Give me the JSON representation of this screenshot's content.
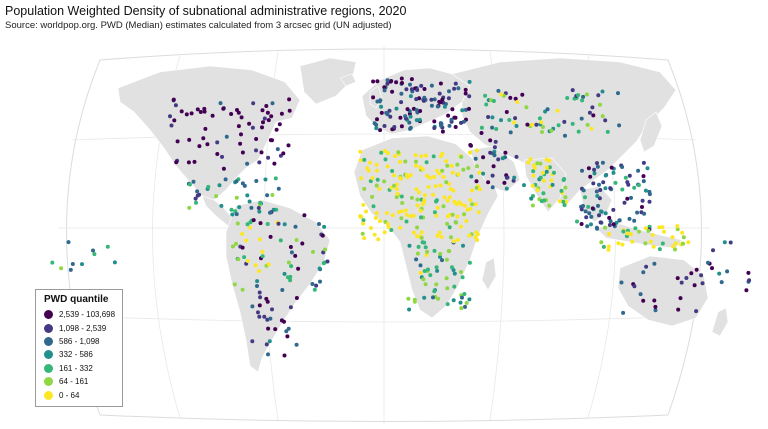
{
  "title": "Population Weighted Density of subnational administrative regions, 2020",
  "subtitle": "Source: worldpop.org. PWD (Median) estimates calculated from 3 arcsec grid (UN adjusted)",
  "legend": {
    "title": "PWD quantile",
    "items": [
      {
        "label": "2,539 - 103,698",
        "color": "#440154"
      },
      {
        "label": "1,098 - 2,539",
        "color": "#443a83"
      },
      {
        "label": "586 - 1,098",
        "color": "#31688e"
      },
      {
        "label": "332 - 586",
        "color": "#21908d"
      },
      {
        "label": "161 - 332",
        "color": "#35b779"
      },
      {
        "label": "64 - 161",
        "color": "#8fd744"
      },
      {
        "label": "0 - 64",
        "color": "#fde725"
      }
    ]
  },
  "colors": {
    "land": "#e1e1e1",
    "ocean_outline": "#dcdcdc",
    "graticule": "#e6e6e6"
  }
}
